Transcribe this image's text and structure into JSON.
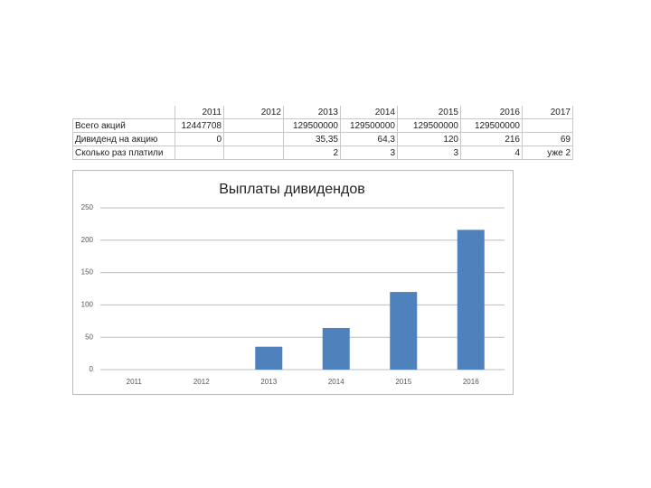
{
  "table": {
    "header": [
      "2011",
      "2012",
      "2013",
      "2014",
      "2015",
      "2016",
      "2017"
    ],
    "rows": [
      [
        "Всего акций",
        "12447708",
        "",
        "129500000",
        "129500000",
        "129500000",
        "129500000",
        ""
      ],
      [
        "Дивиденд на акцию",
        "0",
        "",
        "35,35",
        "64,3",
        "120",
        "216",
        "69"
      ],
      [
        "Сколько раз платили",
        "",
        "",
        "2",
        "3",
        "3",
        "4",
        "уже 2"
      ]
    ]
  },
  "chart_data": {
    "type": "bar",
    "title": "Выплаты дивидендов",
    "categories": [
      "2011",
      "2012",
      "2013",
      "2014",
      "2015",
      "2016"
    ],
    "values": [
      0,
      null,
      35.35,
      64.3,
      120,
      216
    ],
    "color": "#4f81bd",
    "ylim": [
      0,
      250
    ],
    "yticks": [
      0,
      50,
      100,
      150,
      200,
      250
    ],
    "grid": true
  }
}
